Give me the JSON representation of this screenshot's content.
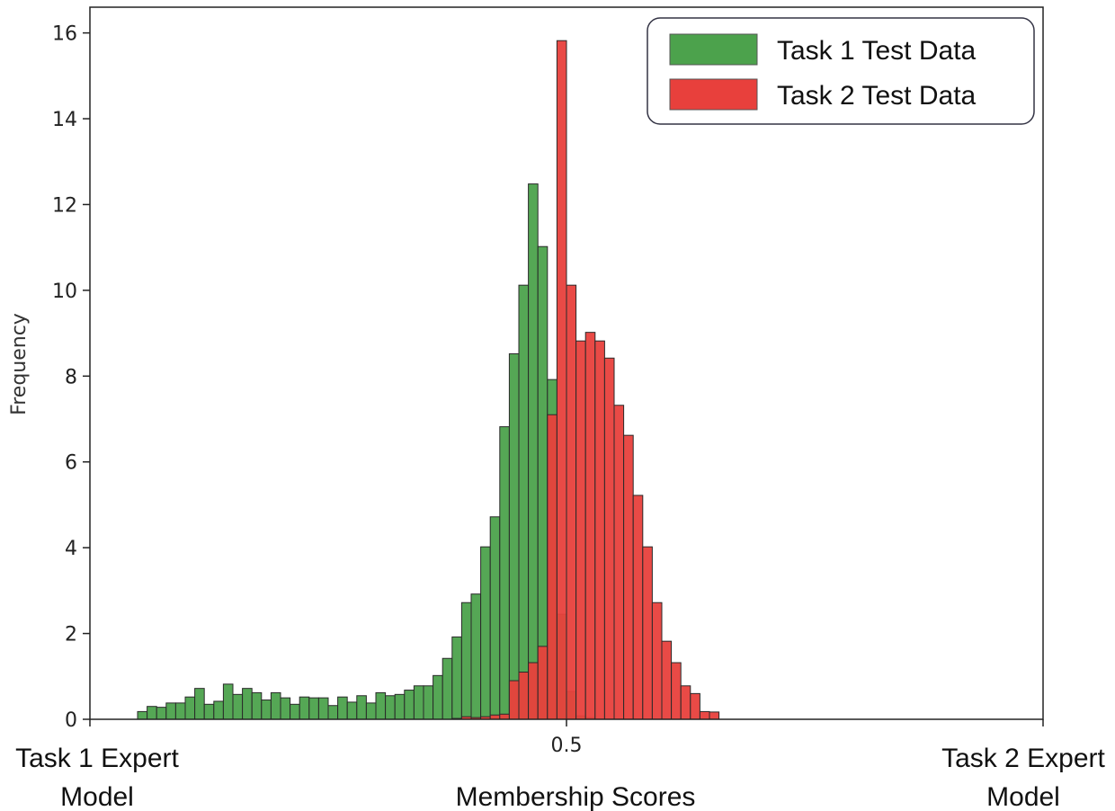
{
  "chart_data": {
    "type": "histogram",
    "xlabel": "Membership Scores",
    "ylabel": "Frequency",
    "xlim": [
      0,
      1
    ],
    "ylim": [
      0,
      16.6
    ],
    "bin_width": 0.01,
    "x_ticks": [
      {
        "value": 0.5,
        "label": "0.5"
      }
    ],
    "y_ticks": [
      0,
      2,
      4,
      6,
      8,
      10,
      12,
      14,
      16
    ],
    "x_end_labels": {
      "left": [
        "Task 1 Expert",
        "Model"
      ],
      "right": [
        "Task 2 Expert",
        "Model"
      ]
    },
    "legend": {
      "position": "top-right"
    },
    "series": [
      {
        "name": "Task 1 Test Data",
        "color": "#4ca24c",
        "bin_start": 0.05,
        "values": [
          0.18,
          0.3,
          0.28,
          0.38,
          0.38,
          0.52,
          0.72,
          0.35,
          0.42,
          0.82,
          0.58,
          0.72,
          0.62,
          0.45,
          0.62,
          0.5,
          0.35,
          0.52,
          0.5,
          0.5,
          0.32,
          0.52,
          0.4,
          0.55,
          0.38,
          0.62,
          0.55,
          0.58,
          0.68,
          0.78,
          0.78,
          1.02,
          1.42,
          1.92,
          2.72,
          2.92,
          4.02,
          4.72,
          6.82,
          8.52,
          10.12,
          12.48,
          11.02,
          7.92,
          2.45,
          0.65,
          0.08,
          0.04,
          0,
          0,
          0,
          0,
          0,
          0,
          0,
          0,
          0,
          0,
          0,
          0,
          0,
          0,
          0,
          0,
          0,
          0,
          0,
          0,
          0,
          0,
          0,
          0,
          0,
          0
        ]
      },
      {
        "name": "Task 2 Test Data",
        "color": "#e8403c",
        "bin_start": 0.05,
        "values": [
          0,
          0,
          0,
          0,
          0,
          0,
          0,
          0,
          0,
          0,
          0,
          0,
          0,
          0,
          0,
          0,
          0,
          0,
          0,
          0,
          0,
          0,
          0,
          0,
          0,
          0,
          0,
          0,
          0,
          0,
          0,
          0,
          0,
          0.02,
          0.06,
          0.04,
          0.06,
          0.1,
          0.12,
          0.9,
          1.1,
          1.32,
          1.7,
          7.1,
          15.82,
          10.12,
          8.82,
          9.02,
          8.82,
          8.42,
          7.32,
          6.62,
          5.22,
          4.02,
          2.72,
          1.82,
          1.32,
          0.78,
          0.6,
          0.18,
          0.17,
          0,
          0,
          0,
          0,
          0,
          0,
          0,
          0,
          0,
          0,
          0,
          0,
          0
        ]
      }
    ]
  }
}
